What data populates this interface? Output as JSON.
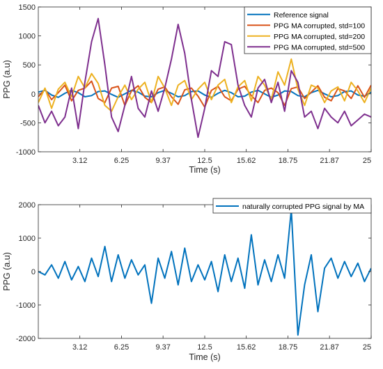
{
  "chart_data": [
    {
      "type": "line",
      "xlabel": "Time (s)",
      "ylabel": "PPG (a.u)",
      "xlim": [
        0,
        25
      ],
      "ylim": [
        -1000,
        1500
      ],
      "x_ticks": [
        "3.12",
        "6.25",
        "9.37",
        "12.5",
        "15.62",
        "18.75",
        "21.87",
        "25"
      ],
      "y_ticks": [
        "-1000",
        "-500",
        "0",
        "500",
        "1000",
        "1500"
      ],
      "grid": false,
      "legend_position": "top-right",
      "series": [
        {
          "name": "Reference signal",
          "color": "#0072BD",
          "x": [
            0,
            0.5,
            1,
            1.5,
            2,
            2.5,
            3,
            3.5,
            4,
            4.5,
            5,
            5.5,
            6,
            6.5,
            7,
            7.5,
            8,
            8.5,
            9,
            9.5,
            10,
            10.5,
            11,
            11.5,
            12,
            12.5,
            13,
            13.5,
            14,
            14.5,
            15,
            15.5,
            16,
            16.5,
            17,
            17.5,
            18,
            18.5,
            19,
            19.5,
            20,
            20.5,
            21,
            21.5,
            22,
            22.5,
            23,
            23.5,
            24,
            24.5,
            25
          ],
          "y": [
            30,
            60,
            -20,
            -60,
            10,
            60,
            20,
            -50,
            -30,
            40,
            50,
            -10,
            -60,
            0,
            60,
            30,
            -40,
            -50,
            20,
            60,
            10,
            -50,
            -30,
            40,
            50,
            -20,
            -60,
            10,
            60,
            20,
            -50,
            -40,
            30,
            60,
            0,
            -60,
            -20,
            50,
            40,
            -30,
            -50,
            20,
            60,
            0,
            -50,
            -30,
            40,
            50,
            -20,
            -40,
            30
          ]
        },
        {
          "name": "PPG MA corrupted, std=100",
          "color": "#D95319",
          "x": [
            0,
            0.5,
            1,
            1.5,
            2,
            2.5,
            3,
            3.5,
            4,
            4.5,
            5,
            5.5,
            6,
            6.5,
            7,
            7.5,
            8,
            8.5,
            9,
            9.5,
            10,
            10.5,
            11,
            11.5,
            12,
            12.5,
            13,
            13.5,
            14,
            14.5,
            15,
            15.5,
            16,
            16.5,
            17,
            17.5,
            18,
            18.5,
            19,
            19.5,
            20,
            20.5,
            21,
            21.5,
            22,
            22.5,
            23,
            23.5,
            24,
            24.5,
            25
          ],
          "y": [
            -50,
            80,
            -100,
            20,
            150,
            -120,
            60,
            100,
            220,
            -80,
            -150,
            100,
            130,
            -200,
            50,
            140,
            -60,
            -150,
            80,
            120,
            -50,
            -180,
            70,
            100,
            -40,
            -230,
            60,
            130,
            -50,
            -120,
            80,
            130,
            -30,
            -150,
            60,
            100,
            20,
            -200,
            90,
            120,
            -80,
            30,
            140,
            -60,
            -120,
            90,
            50,
            -80,
            140,
            -60,
            150
          ]
        },
        {
          "name": "PPG MA corrupted, std=200",
          "color": "#EDB120",
          "x": [
            0,
            0.5,
            1,
            1.5,
            2,
            2.5,
            3,
            3.5,
            4,
            4.5,
            5,
            5.5,
            6,
            6.5,
            7,
            7.5,
            8,
            8.5,
            9,
            9.5,
            10,
            10.5,
            11,
            11.5,
            12,
            12.5,
            13,
            13.5,
            14,
            14.5,
            15,
            15.5,
            16,
            16.5,
            17,
            17.5,
            18,
            18.5,
            19,
            19.5,
            20,
            20.5,
            21,
            21.5,
            22,
            22.5,
            23,
            23.5,
            24,
            24.5,
            25
          ],
          "y": [
            -150,
            100,
            -250,
            80,
            200,
            -50,
            300,
            100,
            350,
            180,
            -200,
            -300,
            -50,
            150,
            -100,
            80,
            200,
            -150,
            300,
            100,
            -200,
            150,
            230,
            -100,
            80,
            200,
            -100,
            150,
            250,
            -150,
            120,
            230,
            -120,
            300,
            150,
            -100,
            380,
            150,
            600,
            80,
            -200,
            150,
            100,
            -150,
            50,
            120,
            -120,
            200,
            50,
            -150,
            100
          ]
        },
        {
          "name": "PPG MA corrupted, std=500",
          "color": "#7E2F8E",
          "x": [
            0,
            0.5,
            1,
            1.5,
            2,
            2.5,
            3,
            3.5,
            4,
            4.5,
            5,
            5.5,
            6,
            6.5,
            7,
            7.5,
            8,
            8.5,
            9,
            9.5,
            10,
            10.5,
            11,
            11.5,
            12,
            12.5,
            13,
            13.5,
            14,
            14.5,
            15,
            15.5,
            16,
            16.5,
            17,
            17.5,
            18,
            18.5,
            19,
            19.5,
            20,
            20.5,
            21,
            21.5,
            22,
            22.5,
            23,
            23.5,
            24,
            24.5,
            25
          ],
          "y": [
            -200,
            -500,
            -300,
            -550,
            -400,
            100,
            -600,
            200,
            900,
            1300,
            500,
            -400,
            -650,
            -200,
            300,
            -250,
            -400,
            50,
            -300,
            100,
            600,
            1200,
            700,
            -100,
            -750,
            -250,
            400,
            300,
            900,
            850,
            150,
            -200,
            -400,
            100,
            250,
            -150,
            200,
            -300,
            400,
            200,
            -400,
            -300,
            -600,
            -250,
            -400,
            -500,
            -300,
            -550,
            -450,
            -350,
            -400
          ]
        }
      ]
    },
    {
      "type": "line",
      "xlabel": "Time (s)",
      "ylabel": "PPG (a.u)",
      "xlim": [
        0,
        25
      ],
      "ylim": [
        -2000,
        2000
      ],
      "x_ticks": [
        "3.12",
        "6.25",
        "9.37",
        "12.5",
        "15.62",
        "18.75",
        "21.87",
        "25"
      ],
      "y_ticks": [
        "-2000",
        "-1000",
        "0",
        "1000",
        "2000"
      ],
      "grid": false,
      "legend_position": "top-right",
      "series": [
        {
          "name": "naturally corrupted PPG signal by MA",
          "color": "#0072BD",
          "x": [
            0,
            0.5,
            1,
            1.5,
            2,
            2.5,
            3,
            3.5,
            4,
            4.5,
            5,
            5.5,
            6,
            6.5,
            7,
            7.5,
            8,
            8.5,
            9,
            9.5,
            10,
            10.5,
            11,
            11.5,
            12,
            12.5,
            13,
            13.5,
            14,
            14.5,
            15,
            15.5,
            16,
            16.5,
            17,
            17.5,
            18,
            18.5,
            19,
            19.5,
            20,
            20.5,
            21,
            21.5,
            22,
            22.5,
            23,
            23.5,
            24,
            24.5,
            25
          ],
          "y": [
            0,
            -100,
            200,
            -200,
            300,
            -250,
            150,
            -300,
            400,
            -150,
            750,
            -300,
            500,
            -200,
            350,
            -100,
            200,
            -950,
            400,
            -200,
            600,
            -400,
            700,
            -300,
            200,
            -250,
            300,
            -600,
            500,
            -300,
            400,
            -500,
            1100,
            -400,
            350,
            -300,
            500,
            -200,
            1850,
            -1900,
            -400,
            500,
            -1200,
            100,
            400,
            -200,
            300,
            -150,
            250,
            -300,
            100
          ]
        }
      ]
    }
  ]
}
